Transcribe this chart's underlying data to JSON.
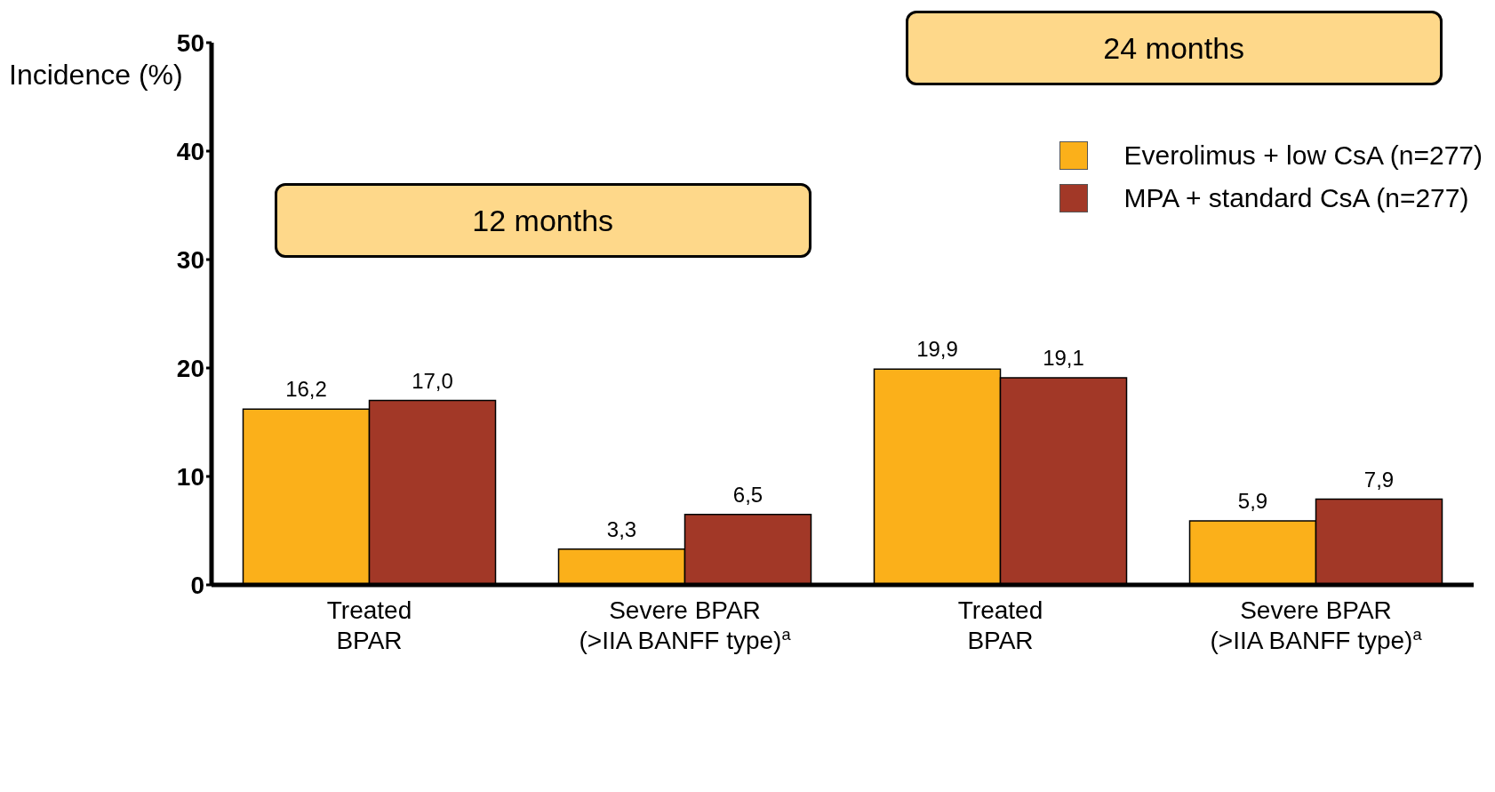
{
  "chart_data": {
    "type": "bar",
    "ylabel": "Incidence (%)",
    "categories": [
      "Treated\nBPAR",
      "Severe BPAR\n(>IIA BANFF type)$^{a}$",
      "Treated\nBPAR",
      "Severe BPAR\n(>IIA BANFF type)$^{a}$"
    ],
    "series": [
      {
        "name": "Everolimus + low CsA (n=277)",
        "color": "#fbb01a",
        "values": [
          16.2,
          3.3,
          19.9,
          5.9
        ],
        "value_labels": [
          "16,2",
          "3,3",
          "19,9",
          "5,9"
        ]
      },
      {
        "name": "MPA + standard CsA (n=277)",
        "color": "#a23827",
        "values": [
          17.0,
          6.5,
          19.1,
          7.9
        ],
        "value_labels": [
          "17,0",
          "6,5",
          "19,1",
          "7,9"
        ]
      }
    ],
    "ylim": [
      0,
      50
    ],
    "yticks": [
      0,
      10,
      20,
      30,
      40,
      50
    ],
    "grid": false,
    "legend": "top right",
    "annotations": [
      "12 months",
      "24 months"
    ]
  }
}
